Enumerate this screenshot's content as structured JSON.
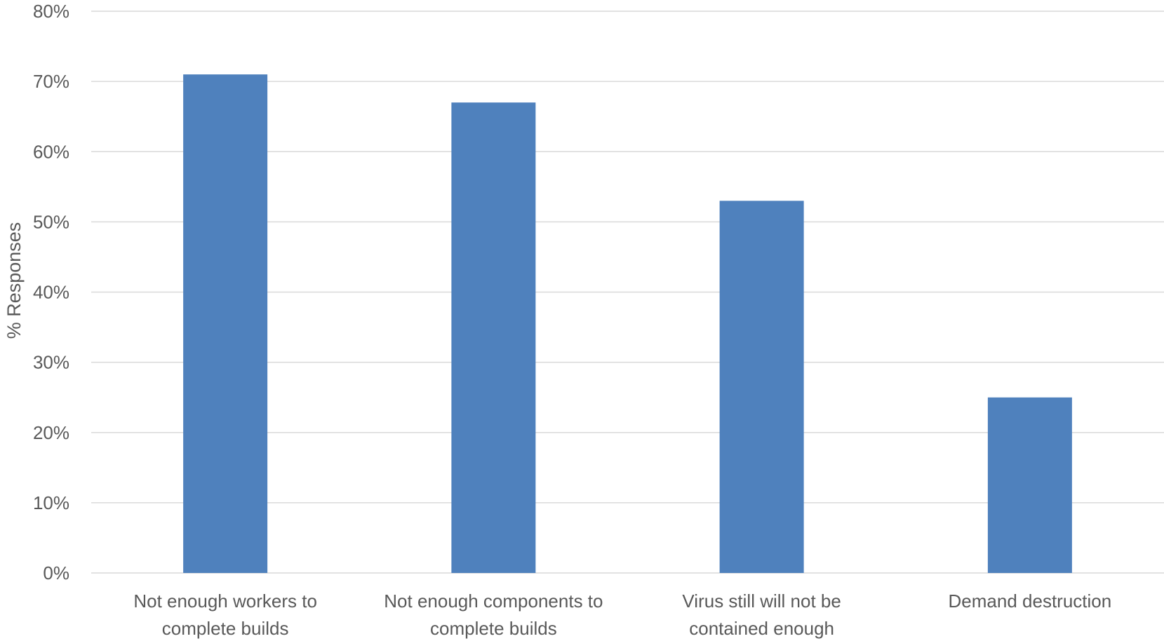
{
  "chart_data": {
    "type": "bar",
    "title": "",
    "xlabel": "",
    "ylabel": "% Responses",
    "ylim": [
      0,
      80
    ],
    "y_ticks": [
      "0%",
      "10%",
      "20%",
      "30%",
      "40%",
      "50%",
      "60%",
      "70%",
      "80%"
    ],
    "categories": [
      [
        "Not enough workers to",
        "complete builds"
      ],
      [
        "Not enough components to",
        "complete builds"
      ],
      [
        "Virus still will not be",
        "contained enough"
      ],
      [
        "Demand destruction"
      ]
    ],
    "values": [
      71,
      67,
      53,
      25
    ],
    "grid": true,
    "legend": "none",
    "colors": {
      "bar": "#4F81BD",
      "grid": "#D9D9D9",
      "axis_text": "#595959"
    }
  }
}
